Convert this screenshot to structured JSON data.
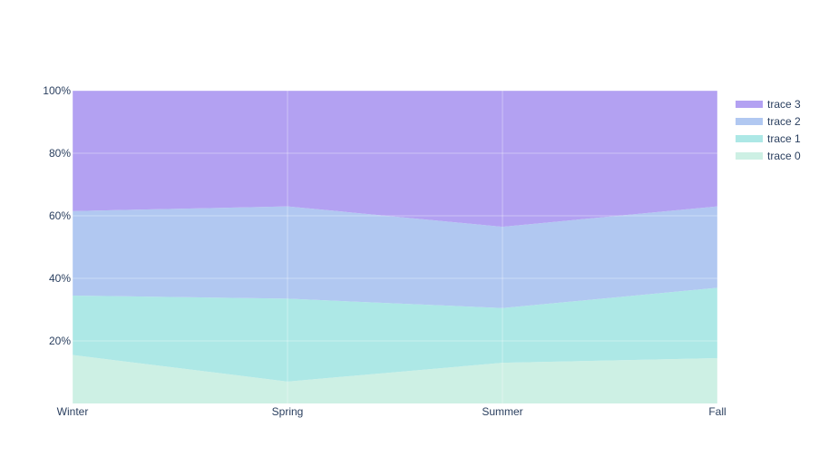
{
  "chart_data": {
    "type": "area",
    "stacked": true,
    "normalized": "percent",
    "categories": [
      "Winter",
      "Spring",
      "Summer",
      "Fall"
    ],
    "series": [
      {
        "name": "trace 0",
        "values": [
          15.5,
          7.0,
          13.0,
          14.5
        ],
        "color": "#cdf0e4"
      },
      {
        "name": "trace 1",
        "values": [
          19.0,
          26.5,
          17.5,
          22.5
        ],
        "color": "#ade8e6"
      },
      {
        "name": "trace 2",
        "values": [
          27.0,
          29.5,
          26.0,
          26.0
        ],
        "color": "#b1c8f1"
      },
      {
        "name": "trace 3",
        "values": [
          38.5,
          37.0,
          43.5,
          37.0
        ],
        "color": "#b3a1f2"
      }
    ],
    "ylim": [
      0,
      100
    ],
    "yticks": [
      "20%",
      "40%",
      "60%",
      "80%",
      "100%"
    ],
    "ytick_values": [
      20,
      40,
      60,
      80,
      100
    ],
    "grid": true,
    "legend": "top-right",
    "legend_order": [
      "trace 3",
      "trace 2",
      "trace 1",
      "trace 0"
    ]
  }
}
